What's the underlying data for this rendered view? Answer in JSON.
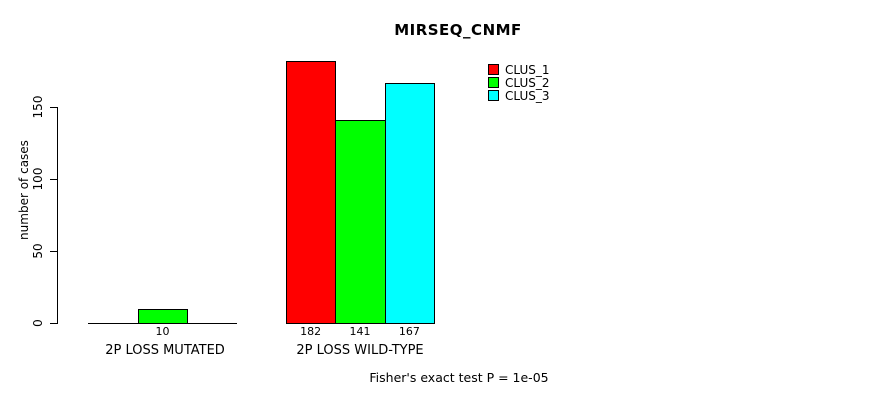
{
  "chart_data": {
    "type": "bar",
    "title": "MIRSEQ_CNMF",
    "ylabel": "number of cases",
    "xlabel": "",
    "yticks": [
      0,
      50,
      100,
      150
    ],
    "ylim": [
      0,
      150
    ],
    "grid": false,
    "legend_position": "top-right",
    "categories": [
      "2P LOSS MUTATED",
      "2P LOSS WILD-TYPE"
    ],
    "series": [
      {
        "name": "CLUS_1",
        "color": "#ff0000",
        "values": [
          0,
          182
        ]
      },
      {
        "name": "CLUS_2",
        "color": "#00ff00",
        "values": [
          10,
          141
        ]
      },
      {
        "name": "CLUS_3",
        "color": "#00ffff",
        "values": [
          0,
          167
        ]
      }
    ],
    "bar_value_labels": [
      [
        "",
        "10",
        ""
      ],
      [
        "182",
        "141",
        "167"
      ]
    ],
    "annotation": "Fisher's exact test P = 1e-05"
  }
}
